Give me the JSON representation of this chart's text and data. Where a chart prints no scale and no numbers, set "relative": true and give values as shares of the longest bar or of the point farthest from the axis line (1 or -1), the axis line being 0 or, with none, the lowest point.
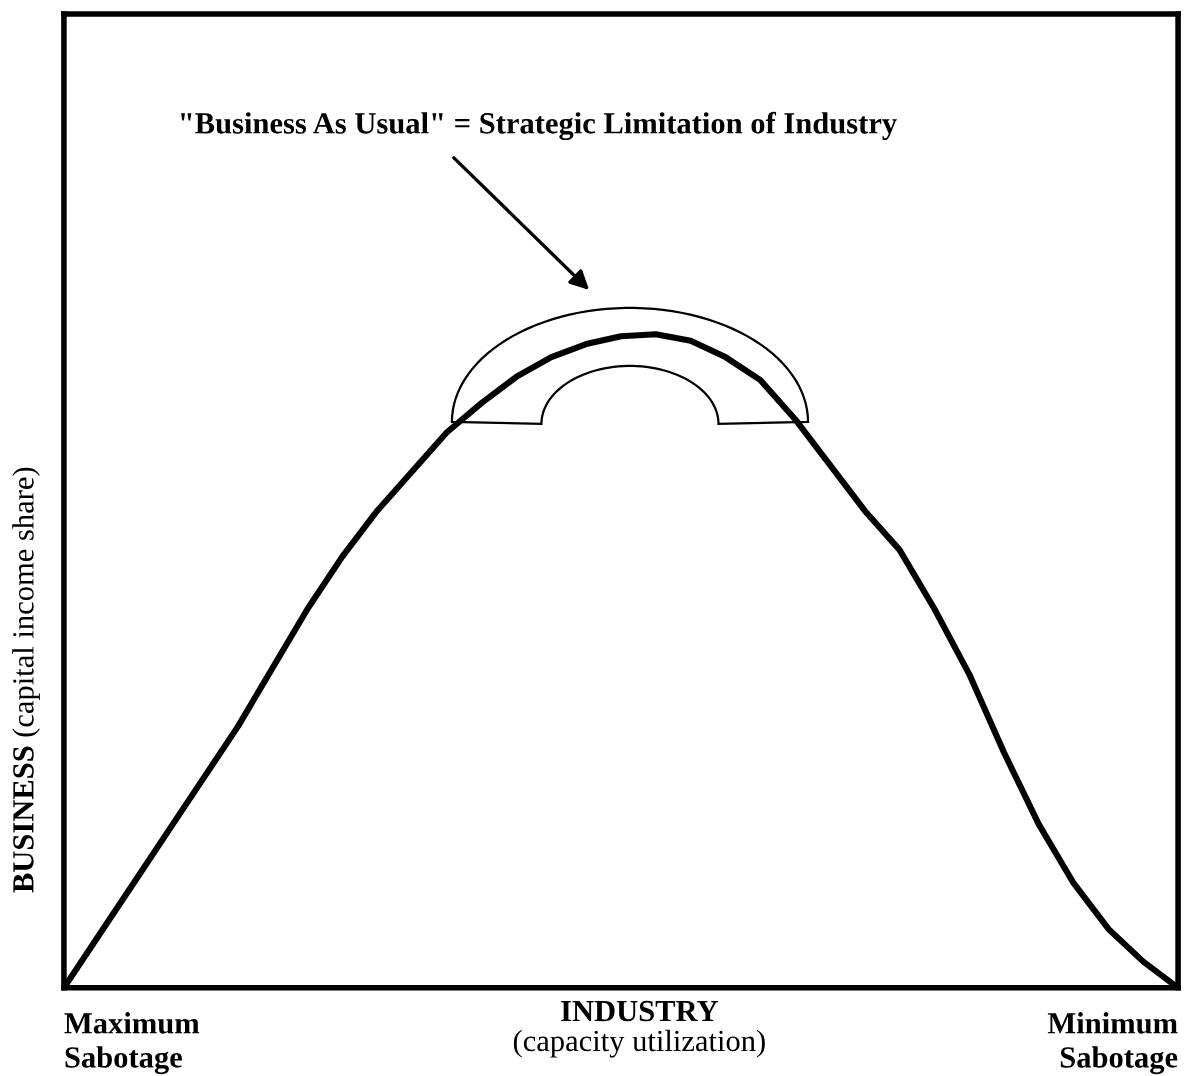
{
  "chart_data": {
    "type": "line",
    "relative": true,
    "xlabel": "INDUSTRY\n(capacity utilization)",
    "ylabel": "BUSINESS (capital income share)",
    "categories": [
      null,
      null,
      null,
      null,
      null,
      null,
      null,
      null,
      null,
      null,
      null,
      null,
      null,
      null,
      null,
      null,
      null,
      null,
      null,
      null,
      null,
      null,
      null,
      null,
      null,
      null,
      null,
      null,
      null,
      null,
      null,
      null,
      null
    ],
    "series": [
      {
        "color": "#000000",
        "values": [
          0,
          0.08,
          0.16,
          0.24,
          0.32,
          0.4,
          0.49,
          0.58,
          0.66,
          0.73,
          0.79,
          0.85,
          0.895,
          0.935,
          0.965,
          0.985,
          0.997,
          1,
          0.99,
          0.965,
          0.93,
          0.87,
          0.8,
          0.73,
          0.67,
          0.58,
          0.48,
          0.36,
          0.25,
          0.16,
          0.09,
          0.04,
          0
        ]
      }
    ],
    "annotations": [
      "\"Business As Usual\" = Strategic Limitation of Industry",
      "Maximum\nSabotage",
      "Minimum\nSabotage"
    ],
    "grid": false,
    "marker": "none",
    "line_style": "solid"
  }
}
